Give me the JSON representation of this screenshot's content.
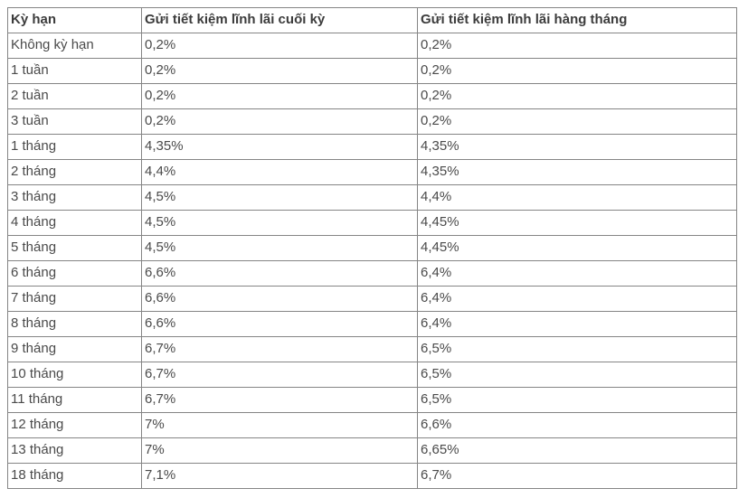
{
  "colors": {
    "background": "#ffffff",
    "table_border": "#858585",
    "header_text": "#3c3c3c",
    "cell_text": "#4a4a4a"
  },
  "chart_data": {
    "type": "table",
    "title": "",
    "columns": [
      "Kỳ hạn",
      "Gửi tiết kiệm lĩnh lãi cuối kỳ",
      "Gửi tiết kiệm lĩnh lãi hàng tháng"
    ],
    "rows": [
      [
        "Không kỳ hạn",
        "0,2%",
        "0,2%"
      ],
      [
        "1 tuần",
        "0,2%",
        "0,2%"
      ],
      [
        "2 tuần",
        "0,2%",
        "0,2%"
      ],
      [
        "3 tuần",
        "0,2%",
        "0,2%"
      ],
      [
        "1 tháng",
        "4,35%",
        "4,35%"
      ],
      [
        "2 tháng",
        "4,4%",
        "4,35%"
      ],
      [
        "3 tháng",
        "4,5%",
        "4,4%"
      ],
      [
        "4 tháng",
        "4,5%",
        "4,45%"
      ],
      [
        "5 tháng",
        "4,5%",
        "4,45%"
      ],
      [
        "6 tháng",
        "6,6%",
        "6,4%"
      ],
      [
        "7 tháng",
        "6,6%",
        "6,4%"
      ],
      [
        "8 tháng",
        "6,6%",
        "6,4%"
      ],
      [
        "9 tháng",
        "6,7%",
        "6,5%"
      ],
      [
        "10 tháng",
        "6,7%",
        "6,5%"
      ],
      [
        "11 tháng",
        "6,7%",
        "6,5%"
      ],
      [
        "12 tháng",
        "7%",
        "6,6%"
      ],
      [
        "13 tháng",
        "7%",
        "6,65%"
      ],
      [
        "18 tháng",
        "7,1%",
        "6,7%"
      ]
    ]
  }
}
